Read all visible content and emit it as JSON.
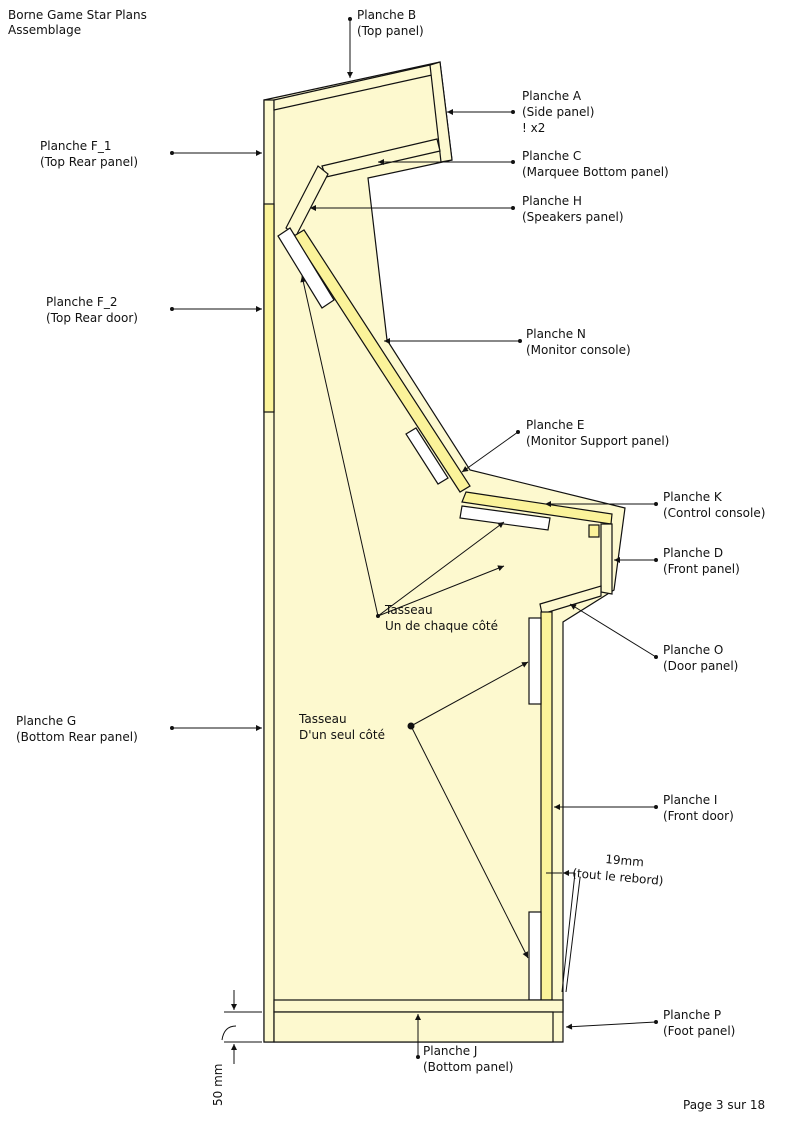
{
  "header": {
    "line1": "Borne Game Star Plans",
    "line2": "Assemblage"
  },
  "footer": {
    "page": "Page 3 sur 18"
  },
  "colors": {
    "wood": "#fdf9cf",
    "panel": "#fbf39a",
    "line": "#111111",
    "cleat": "#ffffff"
  },
  "labels": {
    "b": {
      "line1": "Planche B",
      "line2": "(Top panel)"
    },
    "a": {
      "line1": "Planche A",
      "line2": "(Side panel)",
      "line3": "! x2"
    },
    "f1": {
      "line1": "Planche F_1",
      "line2": "(Top Rear panel)"
    },
    "c": {
      "line1": "Planche C",
      "line2": "(Marquee Bottom panel)"
    },
    "h": {
      "line1": "Planche H",
      "line2": "(Speakers panel)"
    },
    "f2": {
      "line1": "Planche F_2",
      "line2": "(Top Rear door)"
    },
    "n": {
      "line1": "Planche N",
      "line2": "(Monitor console)"
    },
    "e": {
      "line1": "Planche E",
      "line2": "(Monitor Support panel)"
    },
    "k": {
      "line1": "Planche K",
      "line2": "(Control console)"
    },
    "d": {
      "line1": "Planche D",
      "line2": "(Front panel)"
    },
    "o": {
      "line1": "Planche O",
      "line2": "(Door panel)"
    },
    "g": {
      "line1": "Planche G",
      "line2": "(Bottom Rear panel)"
    },
    "i": {
      "line1": "Planche I",
      "line2": "(Front door)"
    },
    "p": {
      "line1": "Planche P",
      "line2": "(Foot panel)"
    },
    "j": {
      "line1": "Planche J",
      "line2": "(Bottom panel)"
    },
    "tasseau1": {
      "line1": "Tasseau",
      "line2": "Un de chaque côté"
    },
    "tasseau2": {
      "line1": "Tasseau",
      "line2": "D'un seul côté"
    },
    "rebord": {
      "line1": "19mm",
      "line2": "(tout le rebord)"
    },
    "dim50": {
      "text": "50 mm"
    }
  }
}
